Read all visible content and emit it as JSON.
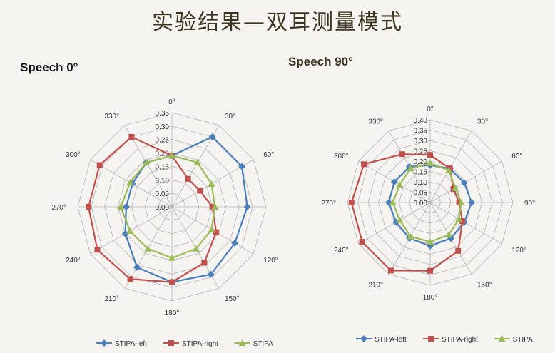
{
  "slide": {
    "title": "实验结果—双耳测量模式"
  },
  "chart_data": [
    {
      "type": "radar",
      "title": "Speech 0°",
      "categories": [
        "0°",
        "30°",
        "60°",
        "90°",
        "120°",
        "150°",
        "180°",
        "210°",
        "240°",
        "270°",
        "300°",
        "330°"
      ],
      "rlim": [
        0,
        0.35
      ],
      "ticks": [
        "0.00",
        "0.05",
        "0.10",
        "0.15",
        "0.20",
        "0.25",
        "0.30",
        "0.35"
      ],
      "grid": true,
      "legend_position": "bottom",
      "series": [
        {
          "name": "STIPA-left",
          "color": "#4a7ebb",
          "marker": "diamond",
          "values": [
            0.19,
            0.3,
            0.3,
            0.28,
            0.27,
            0.29,
            0.28,
            0.26,
            0.2,
            0.17,
            0.17,
            0.19
          ]
        },
        {
          "name": "STIPA-right",
          "color": "#c0504d",
          "marker": "square",
          "values": [
            0.19,
            0.12,
            0.12,
            0.15,
            0.19,
            0.24,
            0.28,
            0.31,
            0.32,
            0.31,
            0.31,
            0.3
          ]
        },
        {
          "name": "STIPA",
          "color": "#9bbb59",
          "marker": "triangle",
          "values": [
            0.19,
            0.19,
            0.17,
            0.16,
            0.17,
            0.18,
            0.19,
            0.18,
            0.18,
            0.19,
            0.18,
            0.19
          ]
        }
      ]
    },
    {
      "type": "radar",
      "title": "Speech 90°",
      "categories": [
        "0°",
        "30°",
        "60°",
        "90°",
        "120°",
        "150°",
        "180°",
        "210°",
        "240°",
        "270°",
        "300°",
        "330°"
      ],
      "rlim": [
        0,
        0.4
      ],
      "ticks": [
        "0.00",
        "0.05",
        "0.10",
        "0.15",
        "0.20",
        "0.25",
        "0.30",
        "0.35",
        "0.40"
      ],
      "grid": true,
      "legend_position": "bottom",
      "series": [
        {
          "name": "STIPA-left",
          "color": "#4a7ebb",
          "marker": "diamond",
          "values": [
            0.18,
            0.19,
            0.19,
            0.2,
            0.19,
            0.2,
            0.21,
            0.2,
            0.19,
            0.2,
            0.2,
            0.2
          ]
        },
        {
          "name": "STIPA-right",
          "color": "#c0504d",
          "marker": "square",
          "values": [
            0.23,
            0.19,
            0.13,
            0.14,
            0.18,
            0.27,
            0.33,
            0.38,
            0.38,
            0.38,
            0.37,
            0.27
          ]
        },
        {
          "name": "STIPA",
          "color": "#9bbb59",
          "marker": "triangle",
          "values": [
            0.19,
            0.18,
            0.14,
            0.15,
            0.16,
            0.18,
            0.19,
            0.19,
            0.17,
            0.18,
            0.17,
            0.19
          ]
        }
      ]
    }
  ]
}
